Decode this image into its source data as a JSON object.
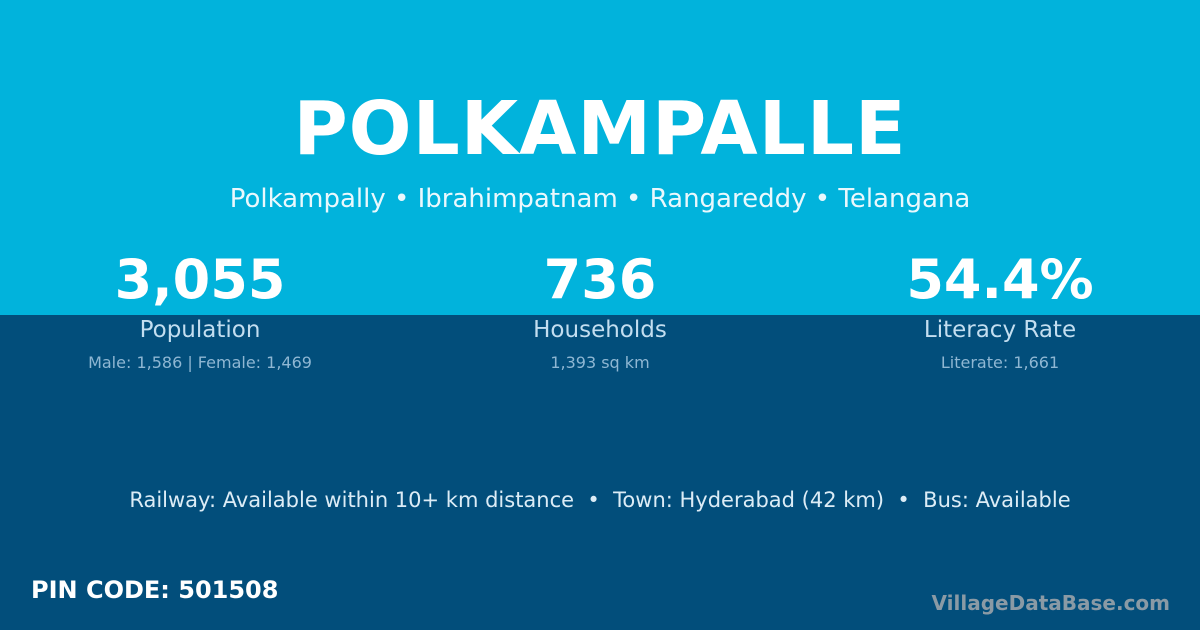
{
  "colors": {
    "top_bg": "#01b3dc",
    "bottom_bg": "#024e7b"
  },
  "village": {
    "name": "POLKAMPALLE",
    "location": "Polkampally • Ibrahimpatnam • Rangareddy • Telangana"
  },
  "stats": [
    {
      "value": "3,055",
      "label": "Population",
      "detail": "Male: 1,586 | Female: 1,469"
    },
    {
      "value": "736",
      "label": "Households",
      "detail": "1,393 sq km"
    },
    {
      "value": "54.4%",
      "label": "Literacy Rate",
      "detail": "Literate: 1,661"
    }
  ],
  "amenities": "Railway: Available within 10+ km distance  •  Town: Hyderabad (42 km)  •  Bus: Available",
  "pin_code": "PIN CODE: 501508",
  "brand": "VillageDataBase.com"
}
